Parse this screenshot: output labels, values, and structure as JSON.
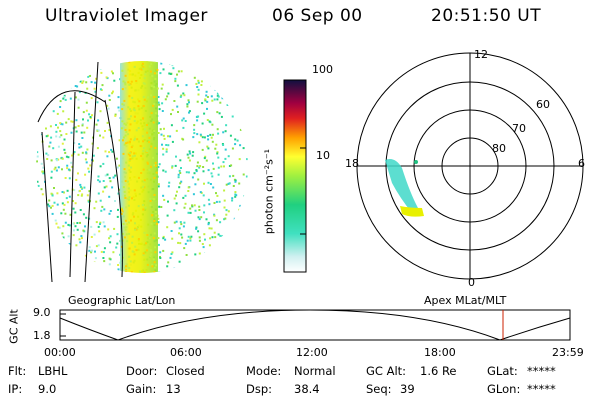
{
  "header": {
    "instrument": "Ultraviolet Imager",
    "date": "06 Sep 00",
    "time": "20:51:50 UT"
  },
  "colorbar": {
    "label": "photon cm⁻²s⁻¹",
    "ticks": [
      "100",
      "10"
    ]
  },
  "polar_plot": {
    "mlt_labels": {
      "top": "12",
      "left": "18",
      "right": "6",
      "bottom": "0"
    },
    "lat_labels": [
      "60",
      "70",
      "80"
    ]
  },
  "panel_labels": {
    "left": "Geographic Lat/Lon",
    "right": "Apex MLat/MLT"
  },
  "altitude_plot": {
    "ylabel": "GC Alt",
    "yticks": [
      "9.0",
      "1.8"
    ],
    "xticks": [
      "00:00",
      "06:00",
      "12:00",
      "18:00",
      "23:59"
    ]
  },
  "info": {
    "flt": {
      "label": "Flt:",
      "value": "LBHL"
    },
    "ip": {
      "label": "IP:",
      "value": "9.0"
    },
    "door": {
      "label": "Door:",
      "value": "Closed"
    },
    "gain": {
      "label": "Gain:",
      "value": "13"
    },
    "mode": {
      "label": "Mode:",
      "value": "Normal"
    },
    "dsp": {
      "label": "Dsp:",
      "value": "38.4"
    },
    "gcalt": {
      "label": "GC Alt:",
      "value": "1.6 Re"
    },
    "seq": {
      "label": "Seq:",
      "value": "39"
    },
    "glat": {
      "label": "GLat:",
      "value": "*****"
    },
    "glon": {
      "label": "GLon:",
      "value": "*****"
    }
  },
  "colors": {
    "accent_marker": "#cc2200"
  }
}
